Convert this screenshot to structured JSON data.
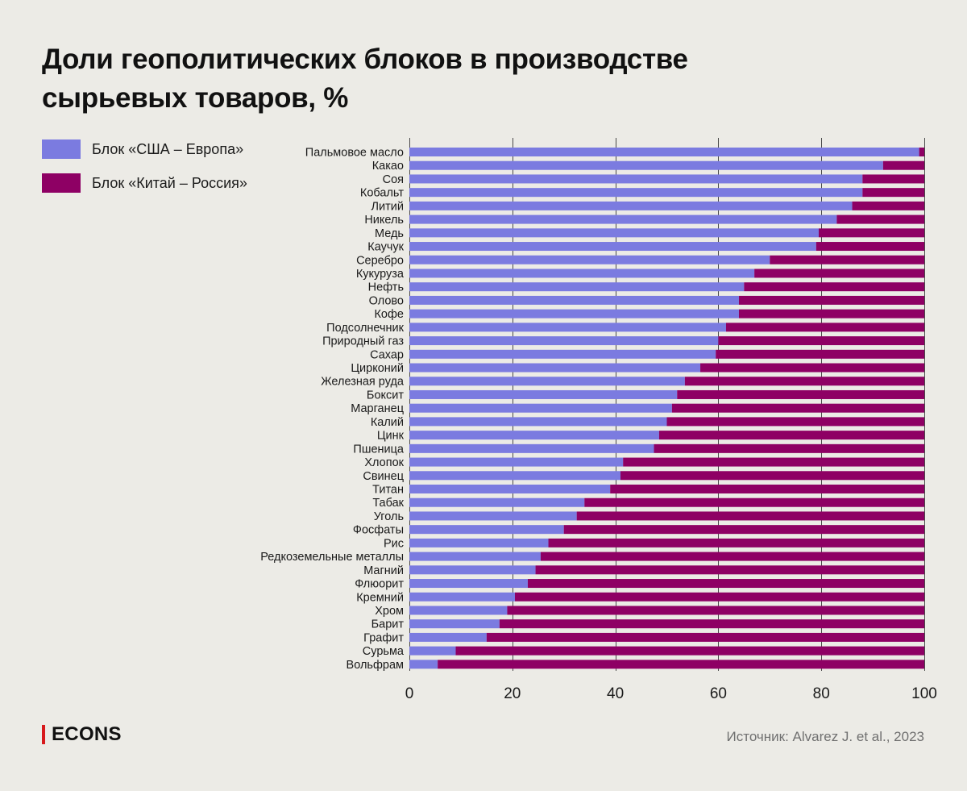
{
  "header": {
    "title": "Доли геополитических блоков в производстве сырьевых товаров, %"
  },
  "legend": {
    "items": [
      {
        "label": "Блок «США – Европа»",
        "color": "#7b7be0"
      },
      {
        "label": "Блок «Китай – Россия»",
        "color": "#8e0064"
      }
    ]
  },
  "footer": {
    "logo": "ECONS",
    "source": "Источник: Alvarez J. et al., 2023"
  },
  "chart_data": {
    "type": "bar",
    "orientation": "horizontal",
    "stacked": true,
    "title": "Доли геополитических блоков в производстве сырьевых товаров, %",
    "xlim": [
      0,
      100
    ],
    "xticks": [
      0,
      20,
      40,
      60,
      80,
      100
    ],
    "grid": true,
    "legend_position": "top-left",
    "categories": [
      "Пальмовое масло",
      "Какао",
      "Соя",
      "Кобальт",
      "Литий",
      "Никель",
      "Медь",
      "Каучук",
      "Серебро",
      "Кукуруза",
      "Нефть",
      "Олово",
      "Кофе",
      "Подсолнечник",
      "Природный газ",
      "Сахар",
      "Цирконий",
      "Железная руда",
      "Боксит",
      "Марганец",
      "Калий",
      "Цинк",
      "Пшеница",
      "Хлопок",
      "Свинец",
      "Титан",
      "Табак",
      "Уголь",
      "Фосфаты",
      "Рис",
      "Редкоземельные металлы",
      "Магний",
      "Флюорит",
      "Кремний",
      "Хром",
      "Барит",
      "Графит",
      "Сурьма",
      "Вольфрам"
    ],
    "series": [
      {
        "name": "Блок «США – Европа»",
        "color": "#7b7be0",
        "values": [
          99,
          92,
          88,
          88,
          86,
          83,
          79.5,
          79,
          70,
          67,
          65,
          64,
          64,
          61.5,
          60,
          59.5,
          56.5,
          53.5,
          52,
          51,
          50,
          48.5,
          47.5,
          41.5,
          41,
          39,
          34,
          32.5,
          30,
          27,
          25.5,
          24.5,
          23,
          20.5,
          19,
          17.5,
          15,
          9,
          5.5
        ]
      },
      {
        "name": "Блок «Китай – Россия»",
        "color": "#8e0064",
        "values": [
          1,
          8,
          12,
          12,
          14,
          17,
          20.5,
          21,
          30,
          33,
          35,
          36,
          36,
          38.5,
          40,
          40.5,
          43.5,
          46.5,
          48,
          49,
          50,
          51.5,
          52.5,
          58.5,
          59,
          61,
          66,
          67.5,
          70,
          73,
          74.5,
          75.5,
          77,
          79.5,
          81,
          82.5,
          85,
          91,
          94.5
        ]
      }
    ]
  }
}
